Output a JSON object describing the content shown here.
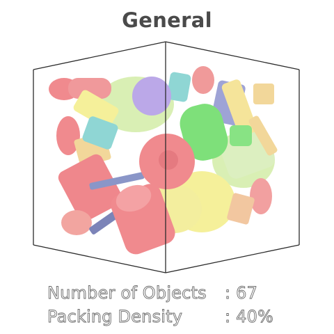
{
  "title": "General",
  "stats": {
    "objects_label": "Number of Objects",
    "objects_value": ": 67",
    "density_label": "Packing Density",
    "density_value": ": 40%"
  },
  "colors": {
    "red": "#f08a8e",
    "yellow": "#f5f09a",
    "green": "#7ee07a",
    "light_green": "#d9efb4",
    "teal": "#8fd6d4",
    "purple": "#bba8e8",
    "blue_gray": "#8a96c8",
    "tan": "#f2d79a",
    "frame": "#2b2b2b"
  }
}
